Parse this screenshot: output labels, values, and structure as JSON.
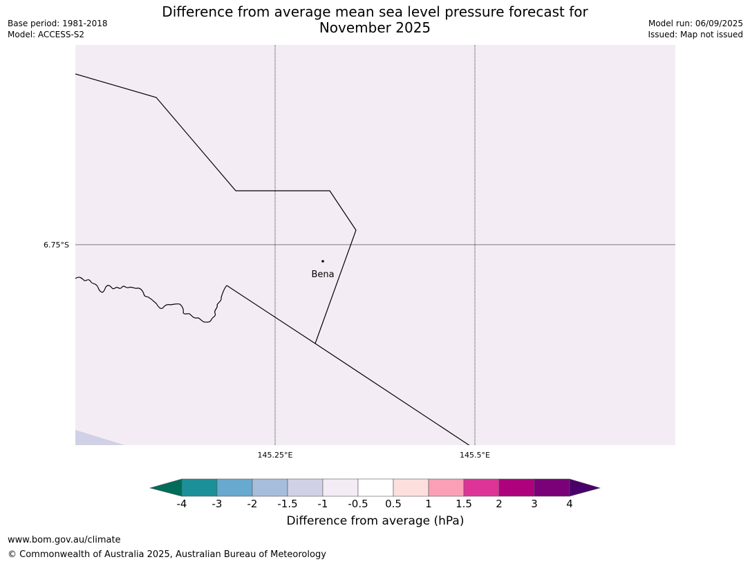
{
  "header": {
    "title_line1": "Difference from average mean sea level pressure forecast for",
    "title_line2": "November 2025",
    "base_period": "Base period: 1981-2018",
    "model": "Model: ACCESS-S2",
    "model_run": "Model run: 06/09/2025",
    "issued": "Issued: Map not issued"
  },
  "map": {
    "background_color": "#f4ecf5",
    "lower_left_patch_color": "#d0d1e6",
    "lat_label": "6.75°S",
    "lon_labels": [
      "145.25°E",
      "145.5°E"
    ],
    "place": {
      "name": "Bena"
    }
  },
  "colorbar": {
    "title": "Difference from average (hPa)",
    "tick_labels": [
      "-4",
      "-3",
      "-2",
      "-1.5",
      "-1",
      "-0.5",
      "0.5",
      "1",
      "1.5",
      "2",
      "3",
      "4"
    ],
    "under_color": "#016c59",
    "over_color": "#49006a",
    "colors": [
      "#1c9099",
      "#67a9cf",
      "#a6bddb",
      "#d0d1e6",
      "#f4ecf5",
      "#ffffff",
      "#fde0dd",
      "#fa9fb5",
      "#dd3497",
      "#ae017e",
      "#7a0177"
    ]
  },
  "footer": {
    "url": "www.bom.gov.au/climate",
    "copyright": "© Commonwealth of Australia 2025, Australian Bureau of Meteorology"
  }
}
